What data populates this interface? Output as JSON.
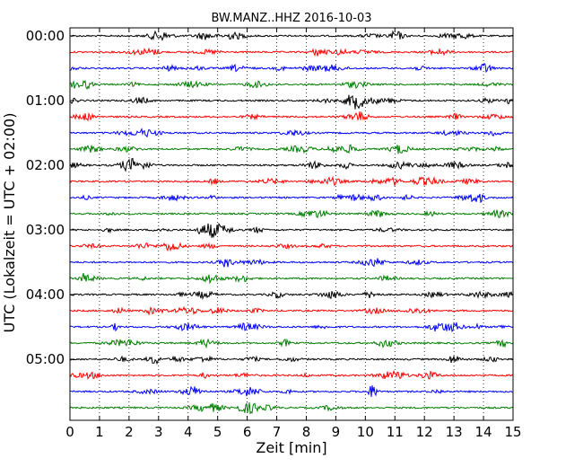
{
  "chart_data": {
    "type": "line",
    "title": "BW.MANZ..HHZ 2016-10-03",
    "xlabel": "Zeit  [min]",
    "ylabel": "UTC (Lokalzeit = UTC + 02:00)",
    "xlim": [
      0,
      15
    ],
    "x_ticks": [
      "0",
      "1",
      "2",
      "3",
      "4",
      "5",
      "6",
      "7",
      "8",
      "9",
      "10",
      "11",
      "12",
      "13",
      "14",
      "15"
    ],
    "y_ticks": [
      "00:00",
      "01:00",
      "02:00",
      "03:00",
      "04:00",
      "05:00"
    ],
    "trace_count": 24,
    "minutes_per_trace": 15,
    "trace_colors": [
      "#000000",
      "#ff0000",
      "#0000ff",
      "#007f00"
    ],
    "grid": "vertical dotted lines at each minute",
    "legend": "none"
  }
}
